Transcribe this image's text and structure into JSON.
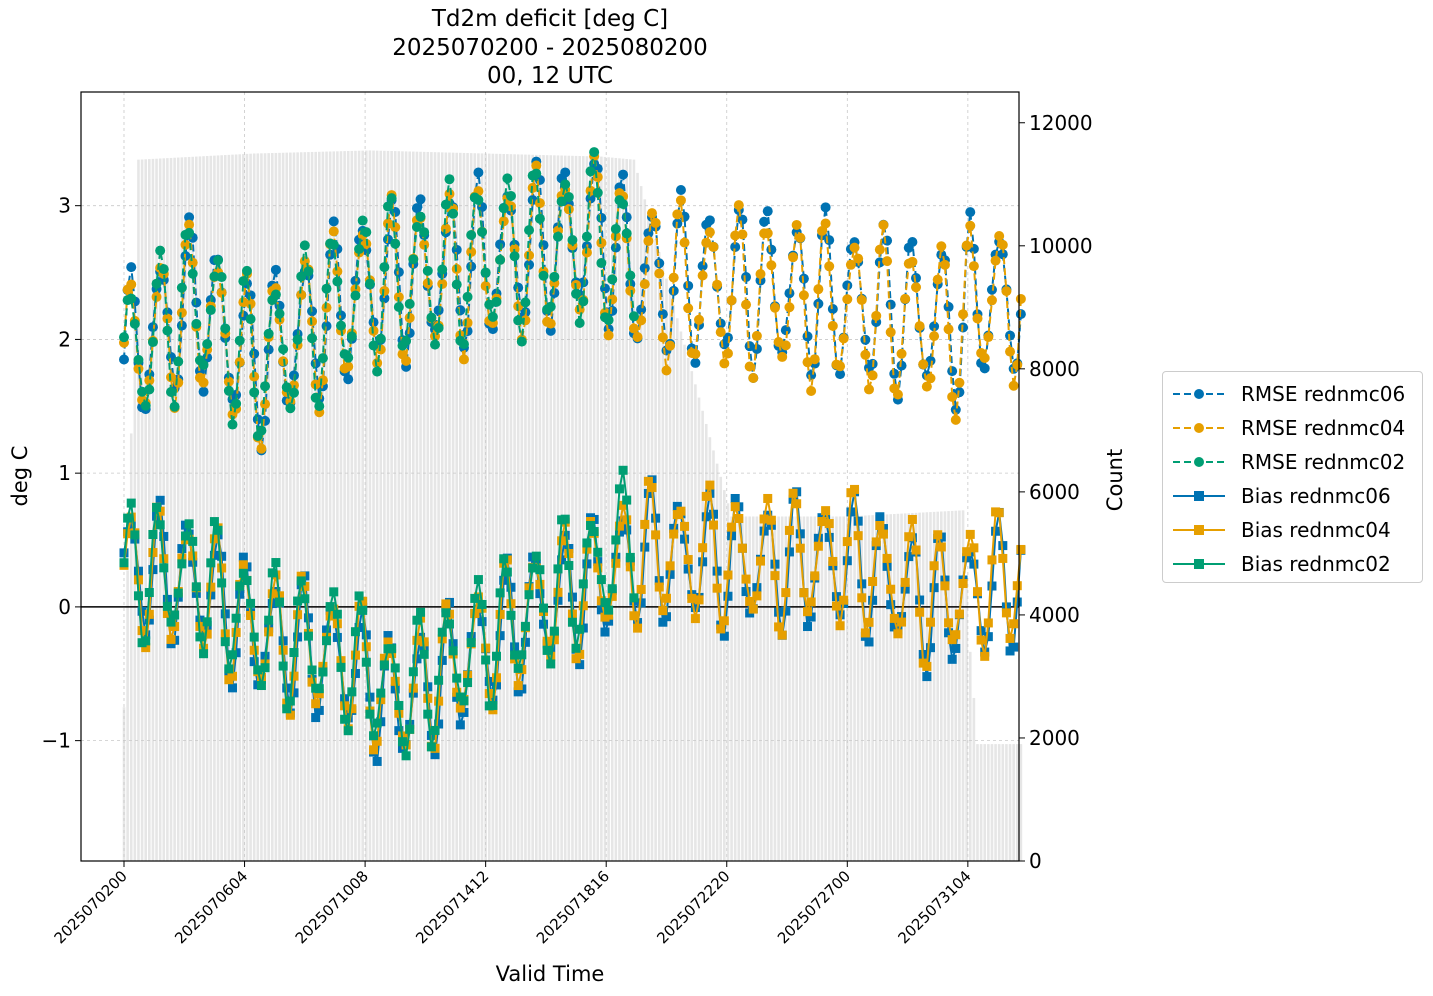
{
  "title_lines": [
    "Td2m deficit [deg C]",
    "2025070200 - 2025080200",
    "00, 12 UTC"
  ],
  "chart_data": {
    "type": "line",
    "title": "Td2m deficit [deg C]\n2025070200 - 2025080200\n00, 12 UTC",
    "xlabel": "Valid Time",
    "ylabel": "deg C",
    "y2label": "Count",
    "ylim": [
      -1.9,
      3.85
    ],
    "y2lim": [
      0,
      12500
    ],
    "yticks": [
      "−1",
      "0",
      "1",
      "2",
      "3"
    ],
    "y2ticks": [
      "0",
      "2000",
      "4000",
      "6000",
      "8000",
      "10000",
      "12000"
    ],
    "xticks": [
      "2025070200",
      "2025070604",
      "2025071008",
      "2025071412",
      "2025071816",
      "2025072220",
      "2025072700",
      "2025073104"
    ],
    "grid": true,
    "legend_position": "right, outside plot",
    "x_axis": {
      "start": "2025070200",
      "end": "2025080200",
      "step_hours": 3
    },
    "series": [
      {
        "name": "RMSE rednmc06",
        "kind": "rmse",
        "color": "#0072b2",
        "dates": [
          "2025070200",
          "2025070412",
          "2025070612",
          "2025071012",
          "2025071412",
          "2025071812",
          "2025071915",
          "2025072300",
          "2025072700",
          "2025073100",
          "2025073106",
          "2025080200"
        ],
        "values": [
          1.85,
          2.3,
          1.8,
          2.4,
          2.6,
          2.8,
          2.5,
          2.4,
          2.3,
          2.1,
          2.3,
          2.3
        ]
      },
      {
        "name": "RMSE rednmc04",
        "kind": "rmse",
        "color": "#e69f00",
        "dates": [
          "2025070200",
          "2025070412",
          "2025070612",
          "2025071012",
          "2025071412",
          "2025071812",
          "2025071915",
          "2025072300",
          "2025072700",
          "2025073100",
          "2025073106",
          "2025080200"
        ],
        "values": [
          1.83,
          2.25,
          1.78,
          2.38,
          2.55,
          2.75,
          2.45,
          2.35,
          2.25,
          2.05,
          2.3,
          2.28
        ]
      },
      {
        "name": "RMSE rednmc02",
        "kind": "rmse",
        "color": "#009e73",
        "dates": [
          "2025070200",
          "2025070412",
          "2025070612",
          "2025071012",
          "2025071412",
          "2025071812",
          "2025071915"
        ],
        "values": [
          1.82,
          2.3,
          1.8,
          2.4,
          2.6,
          2.75,
          2.5
        ]
      },
      {
        "name": "Bias rednmc06",
        "kind": "bias",
        "color": "#0072b2",
        "dates": [
          "2025070200",
          "2025070412",
          "2025070612",
          "2025070912",
          "2025071112",
          "2025071412",
          "2025071612",
          "2025071812",
          "2025072000",
          "2025072400",
          "2025072700",
          "2025073000",
          "2025080200"
        ],
        "values": [
          0.28,
          0.2,
          -0.2,
          -0.4,
          -0.75,
          -0.3,
          0.0,
          0.2,
          0.4,
          0.3,
          0.35,
          0.0,
          0.2
        ]
      },
      {
        "name": "Bias rednmc04",
        "kind": "bias",
        "color": "#e69f00",
        "dates": [
          "2025070200",
          "2025070412",
          "2025070612",
          "2025070912",
          "2025071112",
          "2025071412",
          "2025071612",
          "2025071812",
          "2025072000",
          "2025072400",
          "2025072700",
          "2025073000",
          "2025080200"
        ],
        "values": [
          0.26,
          0.18,
          -0.18,
          -0.38,
          -0.7,
          -0.28,
          0.02,
          0.22,
          0.42,
          0.32,
          0.37,
          0.05,
          0.25
        ]
      },
      {
        "name": "Bias rednmc02",
        "kind": "bias",
        "color": "#009e73",
        "dates": [
          "2025070200",
          "2025070412",
          "2025070612",
          "2025070912",
          "2025071112",
          "2025071412",
          "2025071612",
          "2025071812",
          "2025071915"
        ],
        "values": [
          0.27,
          0.22,
          -0.15,
          -0.35,
          -0.68,
          -0.25,
          0.05,
          0.3,
          0.6
        ]
      }
    ],
    "count_bars": {
      "color": "#e6e6e6",
      "dates": [
        "2025070200",
        "2025070212",
        "2025070612",
        "2025071012",
        "2025071412",
        "2025071812",
        "2025071915",
        "2025072300",
        "2025072700",
        "2025073100",
        "2025073106",
        "2025073112",
        "2025080200"
      ],
      "values": [
        2500,
        11400,
        11500,
        11550,
        11500,
        11450,
        11400,
        5600,
        5600,
        5700,
        3400,
        1900,
        1900
      ]
    }
  }
}
